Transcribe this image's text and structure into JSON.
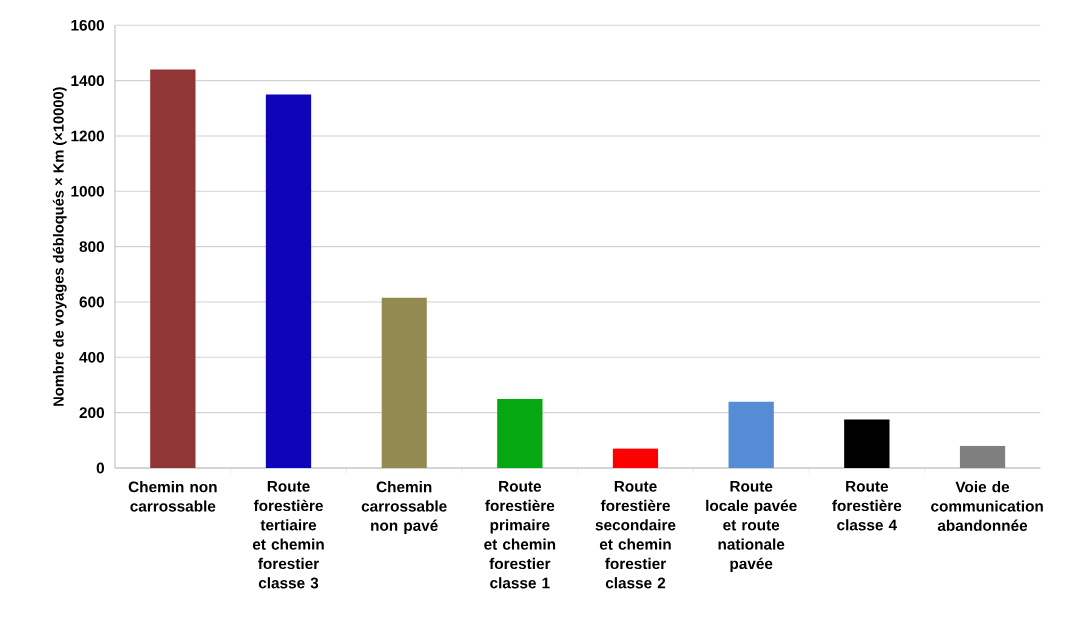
{
  "chart_data": {
    "type": "bar",
    "ylabel": "Nombre de voyages débloqués × Km (×10000)",
    "categories": [
      "Chemin non carrossable",
      "Route forestière tertiaire et chemin forestier classe 3",
      "Chemin carrossable non pavé",
      "Route forestière primaire et chemin forestier classe 1",
      "Route forestière secondaire et chemin forestier classe 2",
      "Route locale pavée et route nationale pavée",
      "Route forestière classe 4",
      "Voie de communication abandonnée"
    ],
    "values": [
      1440,
      1350,
      615,
      250,
      70,
      240,
      175,
      80
    ],
    "colors": [
      "#913636",
      "#1004bb",
      "#938a52",
      "#05a810",
      "#ff0000",
      "#558cd5",
      "#000000",
      "#7f7f7f"
    ],
    "ylim": [
      0,
      1600
    ],
    "yticks": [
      0,
      200,
      400,
      600,
      800,
      1000,
      1200,
      1400,
      1600
    ],
    "grid": "y"
  }
}
